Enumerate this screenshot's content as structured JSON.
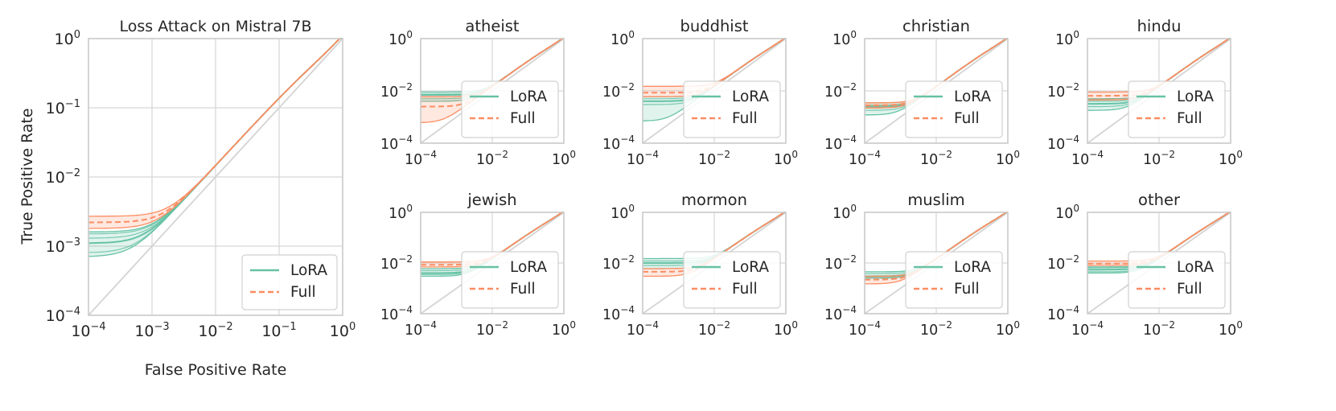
{
  "colors": {
    "lora": "#66c2a5",
    "full": "#fc8d62"
  },
  "figure": {
    "ylabel": "True Positive Rate",
    "xlabel": "False Positive Rate",
    "tick_base": "10",
    "legend_labels": [
      "LoRA",
      "Full"
    ]
  },
  "chart_data": [
    {
      "type": "line",
      "title": "Loss Attack on Mistral 7B",
      "xscale": "log",
      "yscale": "log",
      "xlim": [
        0.0001,
        1
      ],
      "ylim": [
        0.0001,
        1
      ],
      "xtick_exponents": [
        -4,
        -3,
        -2,
        -1,
        0
      ],
      "ytick_exponents": [
        -4,
        -3,
        -2,
        -1,
        0
      ],
      "xlabel": "False Positive Rate",
      "ylabel": "True Positive Rate",
      "legend_loc": "lower right",
      "series": [
        {
          "name": "LoRA",
          "style": "solid",
          "tpr_at_1e-4": 0.0011,
          "band": [
            0.0007,
            0.0016
          ],
          "inner_lines": [
            0.0008,
            0.0013,
            0.0015
          ]
        },
        {
          "name": "Full",
          "style": "dashed",
          "tpr_at_1e-4": 0.0022,
          "band": [
            0.0018,
            0.0027
          ],
          "inner_lines": []
        }
      ]
    },
    {
      "type": "line",
      "title": "atheist",
      "xscale": "log",
      "yscale": "log",
      "xlim": [
        0.0001,
        1
      ],
      "ylim": [
        0.0001,
        1
      ],
      "xtick_exponents": [
        -4,
        -2,
        0
      ],
      "ytick_exponents": [
        -4,
        -2,
        0
      ],
      "legend_loc": "lower right",
      "series": [
        {
          "name": "LoRA",
          "style": "solid",
          "tpr_at_1e-4": 0.007,
          "band": [
            0.004,
            0.009
          ],
          "inner_lines": [
            0.005,
            0.0075
          ]
        },
        {
          "name": "Full",
          "style": "dashed",
          "tpr_at_1e-4": 0.0025,
          "band": [
            0.0006,
            0.006
          ],
          "inner_lines": []
        }
      ]
    },
    {
      "type": "line",
      "title": "buddhist",
      "xscale": "log",
      "yscale": "log",
      "xlim": [
        0.0001,
        1
      ],
      "ylim": [
        0.0001,
        1
      ],
      "xtick_exponents": [
        -4,
        -2,
        0
      ],
      "ytick_exponents": [
        -4,
        -2,
        0
      ],
      "legend_loc": "lower right",
      "series": [
        {
          "name": "LoRA",
          "style": "solid",
          "tpr_at_1e-4": 0.004,
          "band": [
            0.0007,
            0.006
          ],
          "inner_lines": [
            0.003,
            0.005
          ]
        },
        {
          "name": "Full",
          "style": "dashed",
          "tpr_at_1e-4": 0.0085,
          "band": [
            0.006,
            0.015
          ],
          "inner_lines": []
        }
      ]
    },
    {
      "type": "line",
      "title": "christian",
      "xscale": "log",
      "yscale": "log",
      "xlim": [
        0.0001,
        1
      ],
      "ylim": [
        0.0001,
        1
      ],
      "xtick_exponents": [
        -4,
        -2,
        0
      ],
      "ytick_exponents": [
        -4,
        -2,
        0
      ],
      "legend_loc": "lower right",
      "series": [
        {
          "name": "LoRA",
          "style": "solid",
          "tpr_at_1e-4": 0.0025,
          "band": [
            0.0012,
            0.0035
          ],
          "inner_lines": [
            0.0018,
            0.0028
          ]
        },
        {
          "name": "Full",
          "style": "dashed",
          "tpr_at_1e-4": 0.0028,
          "band": [
            0.0022,
            0.0035
          ],
          "inner_lines": []
        }
      ]
    },
    {
      "type": "line",
      "title": "hindu",
      "xscale": "log",
      "yscale": "log",
      "xlim": [
        0.0001,
        1
      ],
      "ylim": [
        0.0001,
        1
      ],
      "xtick_exponents": [
        -4,
        -2,
        0
      ],
      "ytick_exponents": [
        -4,
        -2,
        0
      ],
      "legend_loc": "lower right",
      "series": [
        {
          "name": "LoRA",
          "style": "solid",
          "tpr_at_1e-4": 0.0032,
          "band": [
            0.0018,
            0.005
          ],
          "inner_lines": [
            0.0025,
            0.004
          ]
        },
        {
          "name": "Full",
          "style": "dashed",
          "tpr_at_1e-4": 0.0065,
          "band": [
            0.0045,
            0.009
          ],
          "inner_lines": []
        }
      ]
    },
    {
      "type": "line",
      "title": "jewish",
      "xscale": "log",
      "yscale": "log",
      "xlim": [
        0.0001,
        1
      ],
      "ylim": [
        0.0001,
        1
      ],
      "xtick_exponents": [
        -4,
        -2,
        0
      ],
      "ytick_exponents": [
        -4,
        -2,
        0
      ],
      "legend_loc": "lower right",
      "series": [
        {
          "name": "LoRA",
          "style": "solid",
          "tpr_at_1e-4": 0.004,
          "band": [
            0.003,
            0.006
          ],
          "inner_lines": [
            0.0035,
            0.005
          ]
        },
        {
          "name": "Full",
          "style": "dashed",
          "tpr_at_1e-4": 0.0085,
          "band": [
            0.007,
            0.011
          ],
          "inner_lines": []
        }
      ]
    },
    {
      "type": "line",
      "title": "mormon",
      "xscale": "log",
      "yscale": "log",
      "xlim": [
        0.0001,
        1
      ],
      "ylim": [
        0.0001,
        1
      ],
      "xtick_exponents": [
        -4,
        -2,
        0
      ],
      "ytick_exponents": [
        -4,
        -2,
        0
      ],
      "legend_loc": "lower right",
      "series": [
        {
          "name": "LoRA",
          "style": "solid",
          "tpr_at_1e-4": 0.01,
          "band": [
            0.006,
            0.015
          ],
          "inner_lines": [
            0.008,
            0.012
          ]
        },
        {
          "name": "Full",
          "style": "dashed",
          "tpr_at_1e-4": 0.0045,
          "band": [
            0.003,
            0.006
          ],
          "inner_lines": []
        }
      ]
    },
    {
      "type": "line",
      "title": "muslim",
      "xscale": "log",
      "yscale": "log",
      "xlim": [
        0.0001,
        1
      ],
      "ylim": [
        0.0001,
        1
      ],
      "xtick_exponents": [
        -4,
        -2,
        0
      ],
      "ytick_exponents": [
        -4,
        -2,
        0
      ],
      "legend_loc": "lower right",
      "series": [
        {
          "name": "LoRA",
          "style": "solid",
          "tpr_at_1e-4": 0.003,
          "band": [
            0.0025,
            0.0045
          ],
          "inner_lines": [
            0.0028,
            0.0038
          ]
        },
        {
          "name": "Full",
          "style": "dashed",
          "tpr_at_1e-4": 0.0022,
          "band": [
            0.0015,
            0.003
          ],
          "inner_lines": []
        }
      ]
    },
    {
      "type": "line",
      "title": "other",
      "xscale": "log",
      "yscale": "log",
      "xlim": [
        0.0001,
        1
      ],
      "ylim": [
        0.0001,
        1
      ],
      "xtick_exponents": [
        -4,
        -2,
        0
      ],
      "ytick_exponents": [
        -4,
        -2,
        0
      ],
      "legend_loc": "lower right",
      "series": [
        {
          "name": "LoRA",
          "style": "solid",
          "tpr_at_1e-4": 0.0055,
          "band": [
            0.004,
            0.007
          ],
          "inner_lines": [
            0.0045,
            0.0065
          ]
        },
        {
          "name": "Full",
          "style": "dashed",
          "tpr_at_1e-4": 0.0095,
          "band": [
            0.008,
            0.012
          ],
          "inner_lines": []
        }
      ]
    }
  ]
}
